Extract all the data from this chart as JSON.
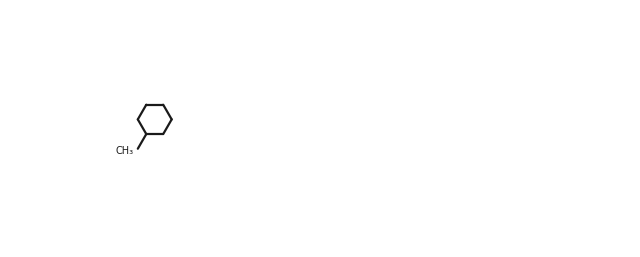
{
  "background_color": "#ffffff",
  "line_color": "#1a1a1a",
  "line_width": 1.6,
  "figsize": [
    6.4,
    2.57
  ],
  "dpi": 100
}
